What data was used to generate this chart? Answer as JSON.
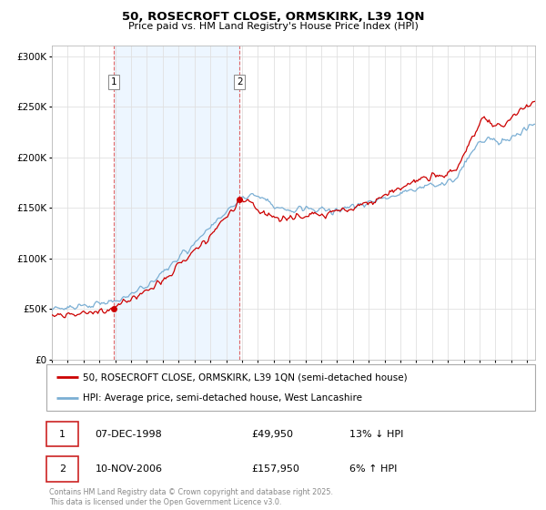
{
  "title": "50, ROSECROFT CLOSE, ORMSKIRK, L39 1QN",
  "subtitle": "Price paid vs. HM Land Registry's House Price Index (HPI)",
  "legend_line1": "50, ROSECROFT CLOSE, ORMSKIRK, L39 1QN (semi-detached house)",
  "legend_line2": "HPI: Average price, semi-detached house, West Lancashire",
  "sale1_label": "1",
  "sale1_date": "07-DEC-1998",
  "sale1_price": "£49,950",
  "sale1_hpi": "13% ↓ HPI",
  "sale2_label": "2",
  "sale2_date": "10-NOV-2006",
  "sale2_price": "£157,950",
  "sale2_hpi": "6% ↑ HPI",
  "footnote": "Contains HM Land Registry data © Crown copyright and database right 2025.\nThis data is licensed under the Open Government Licence v3.0.",
  "house_color": "#cc0000",
  "hpi_color": "#7bafd4",
  "sale1_x": 1998.92,
  "sale1_y": 49950,
  "sale2_x": 2006.85,
  "sale2_y": 157950,
  "ylim": [
    0,
    310000
  ],
  "xlim_start": 1995,
  "xlim_end": 2025.5,
  "yticks": [
    0,
    50000,
    100000,
    150000,
    200000,
    250000,
    300000
  ],
  "xticks": [
    1995,
    1996,
    1997,
    1998,
    1999,
    2000,
    2001,
    2002,
    2003,
    2004,
    2005,
    2006,
    2007,
    2008,
    2009,
    2010,
    2011,
    2012,
    2013,
    2014,
    2015,
    2016,
    2017,
    2018,
    2019,
    2020,
    2021,
    2022,
    2023,
    2024,
    2025
  ],
  "background_color": "#ffffff",
  "grid_color": "#e0e0e0",
  "shade_color": "#ddeeff"
}
